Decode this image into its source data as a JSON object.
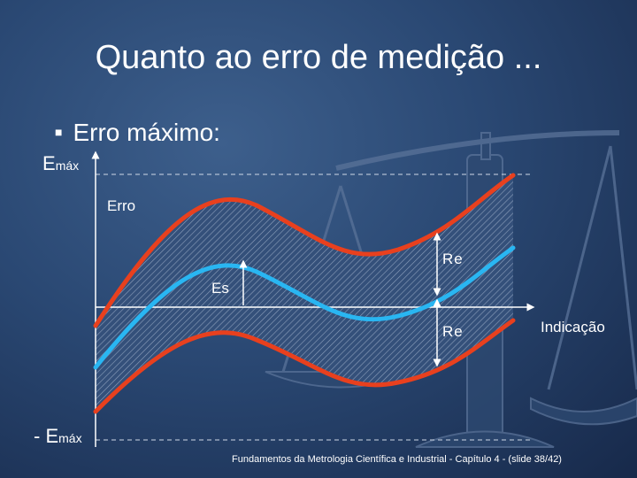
{
  "slide": {
    "title": "Quanto ao erro de medição ...",
    "bullet": "Erro máximo:",
    "footer": "Fundamentos da Metrologia Científica e Industrial - Capítulo 4 -  (slide 38/42)"
  },
  "diagram": {
    "emax_top": "E",
    "emax_top_sub": "máx",
    "emax_bottom_prefix": "- E",
    "emax_bottom_sub": "máx",
    "erro_label": "Erro",
    "es_label": "Es",
    "re_top_label": "Re",
    "re_bottom_label": "Re",
    "axis_label": "Indicação"
  },
  "colors": {
    "curve_limits": "#e8401e",
    "curve_systematic": "#29b6f2",
    "band_hatch": "#7d8ea8",
    "axis": "#ffffff"
  }
}
